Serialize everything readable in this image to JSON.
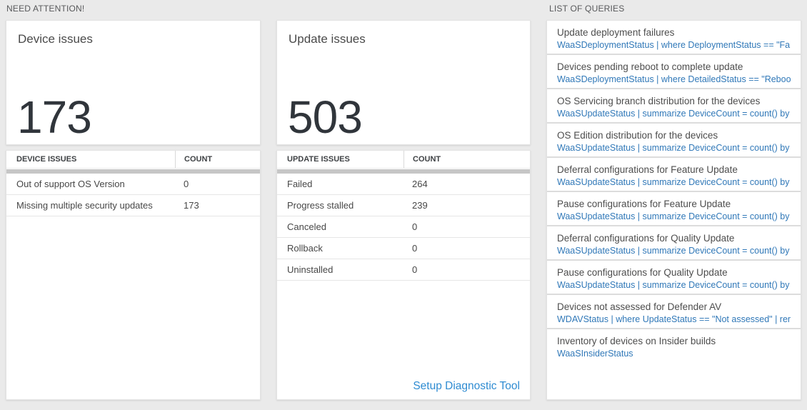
{
  "sections": {
    "need_attention_title": "NEED ATTENTION!",
    "queries_title": "LIST OF QUERIES"
  },
  "device_panel": {
    "tile_title": "Device issues",
    "tile_value": "173",
    "table": {
      "columns": [
        "DEVICE ISSUES",
        "COUNT"
      ],
      "rows": [
        [
          "Out of support OS Version",
          "0"
        ],
        [
          "Missing multiple security updates",
          "173"
        ]
      ]
    }
  },
  "update_panel": {
    "tile_title": "Update issues",
    "tile_value": "503",
    "table": {
      "columns": [
        "UPDATE ISSUES",
        "COUNT"
      ],
      "rows": [
        [
          "Failed",
          "264"
        ],
        [
          "Progress stalled",
          "239"
        ],
        [
          "Canceled",
          "0"
        ],
        [
          "Rollback",
          "0"
        ],
        [
          "Uninstalled",
          "0"
        ]
      ]
    },
    "footer_link": "Setup Diagnostic Tool"
  },
  "query_list": {
    "items": [
      {
        "title": "Update deployment failures",
        "query": "WaaSDeploymentStatus | where DeploymentStatus == \"Failed\" |..."
      },
      {
        "title": "Devices pending reboot to complete update",
        "query": "WaaSDeploymentStatus | where DetailedStatus == \"Reboot pend..."
      },
      {
        "title": "OS Servicing branch distribution for the devices",
        "query": "WaaSUpdateStatus | summarize DeviceCount = count() by OSSer..."
      },
      {
        "title": "OS Edition distribution for the devices",
        "query": "WaaSUpdateStatus | summarize DeviceCount = count() by OSEdit..."
      },
      {
        "title": "Deferral configurations for Feature Update",
        "query": "WaaSUpdateStatus | summarize DeviceCount = count() by Featur..."
      },
      {
        "title": "Pause configurations for Feature Update",
        "query": "WaaSUpdateStatus | summarize DeviceCount = count() by Featur..."
      },
      {
        "title": "Deferral configurations for Quality Update",
        "query": "WaaSUpdateStatus | summarize DeviceCount = count() by Qualit..."
      },
      {
        "title": "Pause configurations for Quality Update",
        "query": "WaaSUpdateStatus | summarize DeviceCount = count() by Qualit..."
      },
      {
        "title": "Devices not assessed for Defender AV",
        "query": "WDAVStatus | where UpdateStatus == \"Not assessed\" | render ta..."
      },
      {
        "title": "Inventory of devices on Insider builds",
        "query": "WaaSInsiderStatus"
      }
    ]
  },
  "colors": {
    "page_background": "#eaeaea",
    "card_background": "#ffffff",
    "metric_text": "#30353b",
    "query_link_blue": "#3078b8",
    "action_link_blue": "#2f8cd2",
    "table_header_bar": "#c6c6c6"
  }
}
